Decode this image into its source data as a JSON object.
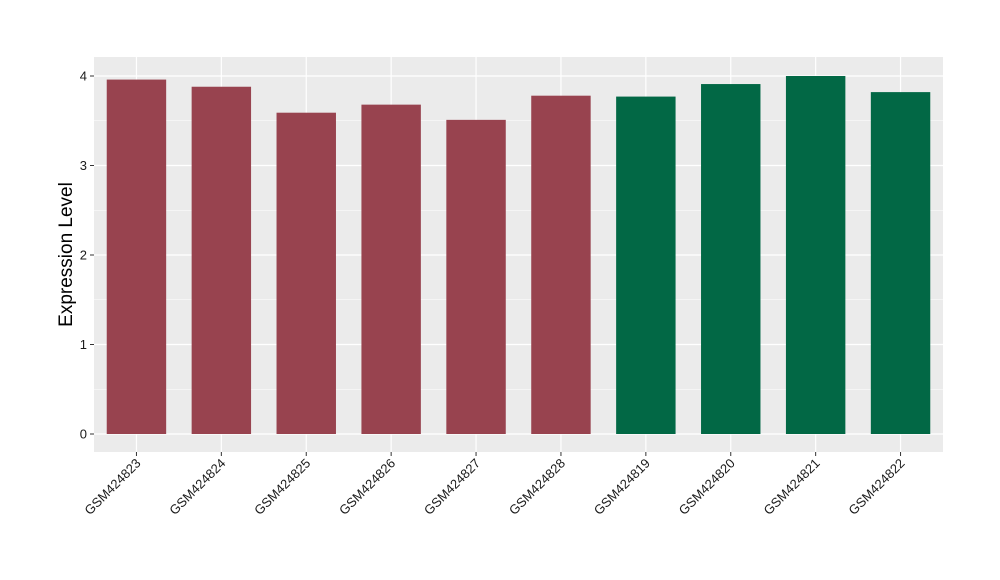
{
  "chart_data": {
    "type": "bar",
    "title": "",
    "xlabel": "",
    "ylabel": "Expression Level",
    "ylim": [
      -0.18,
      4.2
    ],
    "yticks": [
      0,
      1,
      2,
      3,
      4
    ],
    "grid": true,
    "legend": "none",
    "panel_background": "#ebebeb",
    "gridline_color": "#ffffff",
    "categories": [
      "GSM424823",
      "GSM424824",
      "GSM424825",
      "GSM424826",
      "GSM424827",
      "GSM424828",
      "GSM424819",
      "GSM424820",
      "GSM424821",
      "GSM424822"
    ],
    "values": [
      3.96,
      3.88,
      3.59,
      3.68,
      3.51,
      3.78,
      3.77,
      3.91,
      4.0,
      3.82
    ],
    "bar_colors": [
      "#98434f",
      "#98434f",
      "#98434f",
      "#98434f",
      "#98434f",
      "#98434f",
      "#026845",
      "#026845",
      "#026845",
      "#026845"
    ]
  }
}
